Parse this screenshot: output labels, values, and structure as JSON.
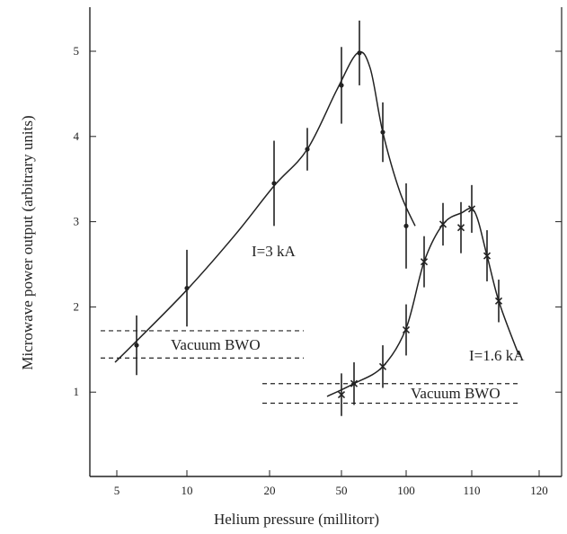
{
  "chart_data": {
    "type": "scatter",
    "title": "",
    "xlabel": "Helium pressure (millitorr)",
    "ylabel": "Microwave power output (arbitrary units)",
    "x_ticks": [
      "5",
      "10",
      "20",
      "50",
      "100",
      "110",
      "120"
    ],
    "y_ticks": [
      "1",
      "2",
      "3",
      "4",
      "5"
    ],
    "ylim": [
      0,
      5.4
    ],
    "grid": false,
    "series": [
      {
        "name": "I=3 kA",
        "marker": "circle",
        "points": [
          {
            "x": "6",
            "y": 1.55,
            "err": 0.35
          },
          {
            "x": "10",
            "y": 2.22,
            "err": 0.45
          },
          {
            "x": "25",
            "y": 3.45,
            "err": 0.5
          },
          {
            "x": "35",
            "y": 3.85,
            "err": 0.25
          },
          {
            "x": "50",
            "y": 4.6,
            "err": 0.45
          },
          {
            "x": "60",
            "y": 4.98,
            "err": 0.38
          },
          {
            "x": "78",
            "y": 4.05,
            "err": 0.35
          },
          {
            "x": "100",
            "y": 2.95,
            "err": 0.5
          }
        ]
      },
      {
        "name": "I=1.6 kA",
        "marker": "x",
        "points": [
          {
            "x": "50",
            "y": 0.97,
            "err": 0.25
          },
          {
            "x": "58",
            "y": 1.1,
            "err": 0.25
          },
          {
            "x": "78",
            "y": 1.3,
            "err": 0.25
          },
          {
            "x": "100",
            "y": 1.73,
            "err": 0.3
          },
          {
            "x": "104",
            "y": 2.53,
            "err": 0.3
          },
          {
            "x": "107",
            "y": 2.97,
            "err": 0.25
          },
          {
            "x": "109",
            "y": 2.93,
            "err": 0.3
          },
          {
            "x": "110",
            "y": 3.15,
            "err": 0.28
          },
          {
            "x": "113",
            "y": 2.6,
            "err": 0.3
          },
          {
            "x": "115",
            "y": 2.07,
            "err": 0.25
          }
        ]
      }
    ],
    "reference_bands": [
      {
        "label": "Vacuum BWO",
        "series": "I=3 kA",
        "lower": 1.4,
        "upper": 1.72
      },
      {
        "label": "Vacuum BWO",
        "series": "I=1.6 kA",
        "lower": 0.87,
        "upper": 1.1
      }
    ],
    "annotations": [
      "I=3 kA",
      "I=1.6 kA",
      "Vacuum BWO",
      "Vacuum BWO"
    ]
  }
}
